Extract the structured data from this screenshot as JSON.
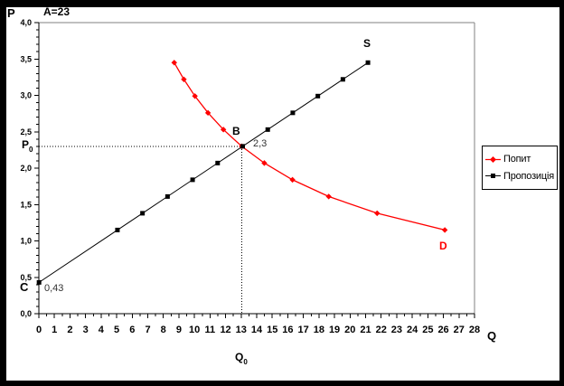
{
  "window": {
    "background": "#ffffff",
    "frame_color": "#000000",
    "plot_border_color": "#808080",
    "axis_color": "#000000"
  },
  "chart_data": {
    "type": "scatter",
    "title": "A=23",
    "xlabel": "Q",
    "ylabel": "P",
    "xlim": [
      0,
      28
    ],
    "ylim": [
      0,
      4
    ],
    "x_major_tick": 1,
    "x_minor_tick": 0.5,
    "y_major_tick": 0.5,
    "y_minor_tick": 0.1,
    "grid": false,
    "legend_position": "right",
    "x_tick_labels": [
      "0",
      "1",
      "2",
      "3",
      "4",
      "5",
      "6",
      "7",
      "8",
      "9",
      "10",
      "11",
      "12",
      "13",
      "14",
      "15",
      "16",
      "17",
      "18",
      "19",
      "20",
      "21",
      "22",
      "23",
      "24",
      "25",
      "26",
      "27",
      "28"
    ],
    "y_tick_labels": [
      "0,0",
      "0,5",
      "1,0",
      "1,5",
      "2,0",
      "2,5",
      "3,0",
      "3,5",
      "4,0"
    ],
    "series": [
      {
        "name": "Попит",
        "color": "#ff0000",
        "marker": "diamond",
        "points": [
          [
            8.7,
            3.45
          ],
          [
            9.32,
            3.22
          ],
          [
            10.03,
            2.99
          ],
          [
            10.87,
            2.76
          ],
          [
            11.86,
            2.53
          ],
          [
            13.04,
            2.3
          ],
          [
            14.49,
            2.07
          ],
          [
            16.3,
            1.84
          ],
          [
            18.63,
            1.61
          ],
          [
            21.74,
            1.38
          ],
          [
            26.09,
            1.15
          ]
        ]
      },
      {
        "name": "Пропозиція",
        "color": "#000000",
        "marker": "square",
        "points": [
          [
            0.01,
            0.43
          ],
          [
            5.05,
            1.15
          ],
          [
            6.66,
            1.38
          ],
          [
            8.27,
            1.61
          ],
          [
            9.88,
            1.84
          ],
          [
            11.49,
            2.07
          ],
          [
            13.1,
            2.3
          ],
          [
            14.71,
            2.53
          ],
          [
            16.32,
            2.76
          ],
          [
            17.93,
            2.99
          ],
          [
            19.54,
            3.22
          ],
          [
            21.15,
            3.45
          ]
        ]
      }
    ],
    "equilibrium": {
      "q": 13.04,
      "p": 2.3
    },
    "annotations": {
      "B": "B",
      "price_at_B": "2,3",
      "S": "S",
      "D": "D",
      "C": "C",
      "price_at_C": "0,43",
      "p0": {
        "main": "P",
        "sub": "0"
      },
      "q0": {
        "main": "Q",
        "sub": "0"
      }
    }
  }
}
